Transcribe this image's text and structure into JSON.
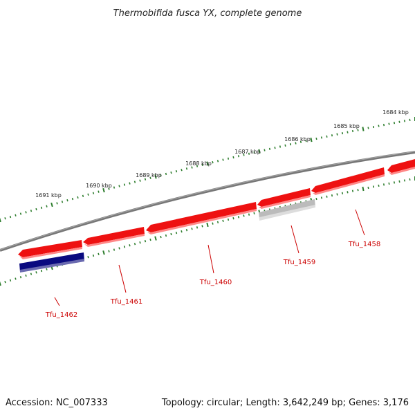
{
  "title": "Thermobifida fusca YX, complete genome",
  "accession": "Accession: NC_007333",
  "topology": "Topology: circular; Length: 3,642,249 bp; Genes: 3,176",
  "colors": {
    "backbone": "#777777",
    "tick": "#2d7d2d",
    "gene_red": "#ee1111",
    "gene_navy": "#0a0a80",
    "gene_gray": "#bbbbbb",
    "label_red": "#cc0000",
    "callout": "#cc0000"
  },
  "kbp_labels": [
    "1684 kbp",
    "1685 kbp",
    "1686 kbp",
    "1687 kbp",
    "1688 kbp",
    "1689 kbp",
    "1690 kbp",
    "1691 kbp"
  ],
  "genes": [
    {
      "id": "Tfu_1458",
      "strand": "forward",
      "color": "red"
    },
    {
      "id": "Tfu_1459",
      "strand": "forward",
      "color": "red"
    },
    {
      "id": "Tfu_1460",
      "strand": "forward",
      "color": "red"
    },
    {
      "id": "Tfu_1461",
      "strand": "forward",
      "color": "red"
    },
    {
      "id": "Tfu_1462",
      "strand": "forward",
      "color": "red"
    },
    {
      "id": "Tfu_1459",
      "strand": "reverse",
      "color": "gray"
    },
    {
      "id": "Tfu_1462",
      "strand": "reverse",
      "color": "navy"
    }
  ],
  "gene_labels": [
    "Tfu_1458",
    "Tfu_1459",
    "Tfu_1460",
    "Tfu_1461",
    "Tfu_1462"
  ]
}
